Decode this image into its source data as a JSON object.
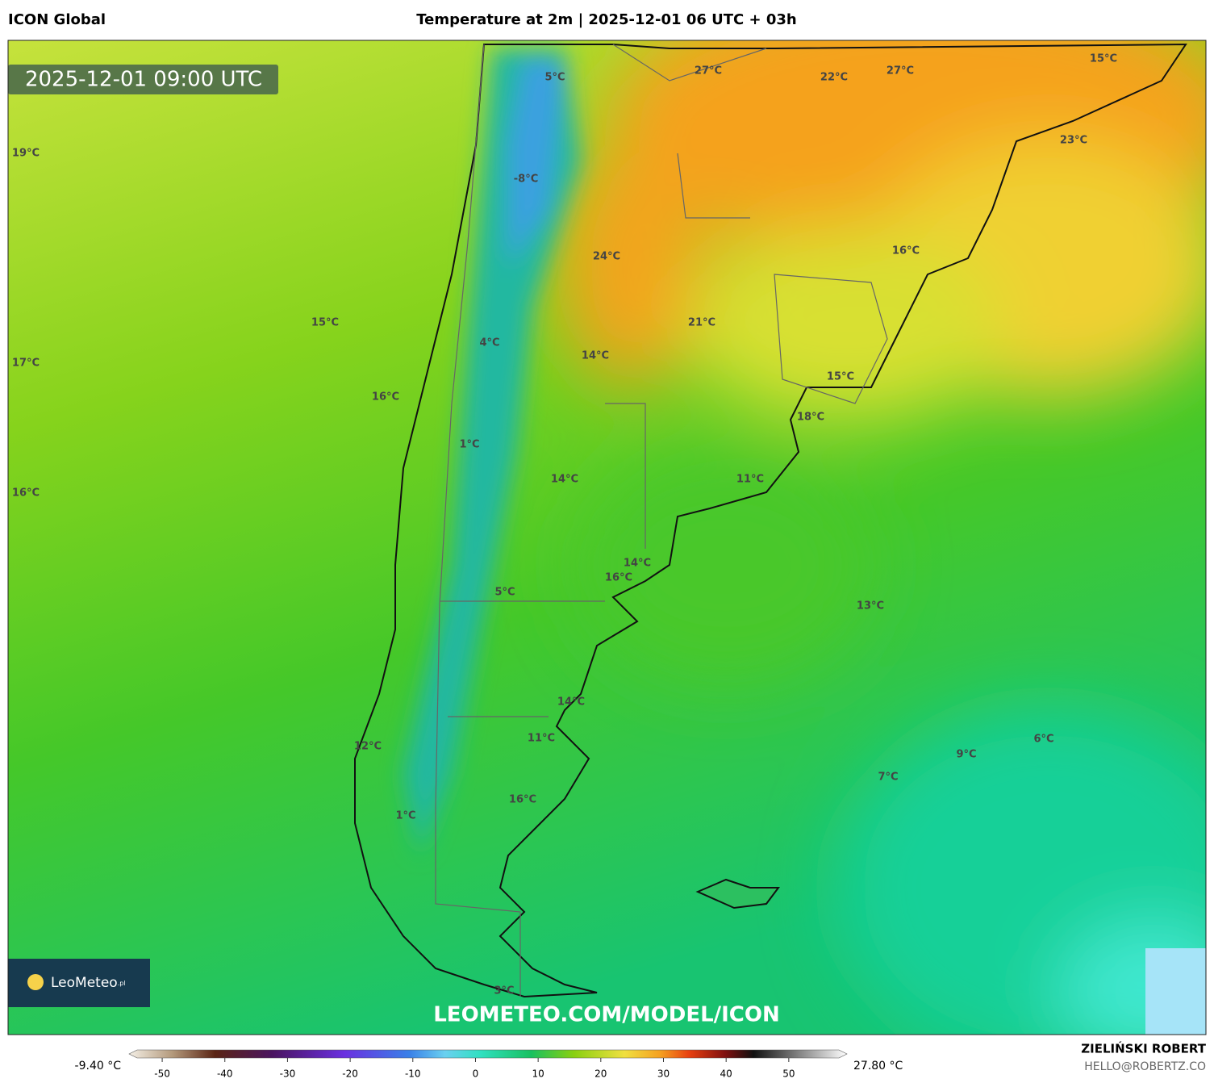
{
  "header": {
    "model": "ICON Global",
    "title": "Temperature at 2m | 2025-12-01 06 UTC + 03h"
  },
  "map": {
    "timestamp": "2025-12-01 09:00 UTC",
    "labels": [
      "27°C",
      "22°C",
      "27°C",
      "15°C",
      "5°C",
      "23°C",
      "19°C",
      "-8°C",
      "24°C",
      "16°C",
      "15°C",
      "21°C",
      "17°C",
      "4°C",
      "14°C",
      "15°C",
      "16°C",
      "18°C",
      "1°C",
      "14°C",
      "11°C",
      "16°C",
      "14°C",
      "16°C",
      "5°C",
      "13°C",
      "14°C",
      "11°C",
      "6°C",
      "12°C",
      "9°C",
      "7°C",
      "16°C",
      "1°C",
      "3°C"
    ],
    "watermark": "LEOMETEO.COM/MODEL/ICON",
    "logo": {
      "name": "LeoMeteo",
      "suffix": ".pl"
    }
  },
  "colorbar": {
    "min_label": "-9.40 °C",
    "max_label": "27.80 °C",
    "range": [
      -54,
      58
    ],
    "ticks": [
      -50,
      -40,
      -30,
      -20,
      -10,
      0,
      10,
      20,
      30,
      40,
      50
    ]
  },
  "footer": {
    "author": "ZIELIŃSKI ROBERT",
    "email": "HELLO@ROBERTZ.CO"
  }
}
